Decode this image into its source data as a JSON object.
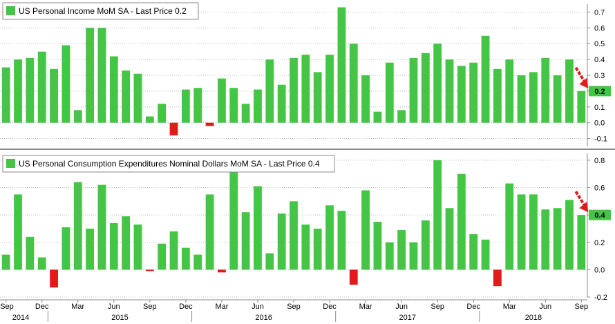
{
  "colors": {
    "positive": "#45c545",
    "negative": "#e31a1a",
    "arrow": "#e31a1a",
    "last_price_tag": "#45c545",
    "grid": "#bdbdbd",
    "divider": "#8a8a8a"
  },
  "x_axis": {
    "month_labels": [
      "Sep",
      "Dec",
      "Mar",
      "Jun",
      "Sep",
      "Dec",
      "Mar",
      "Jun",
      "Sep",
      "Dec",
      "Mar",
      "Jun",
      "Sep",
      "Dec",
      "Mar",
      "Jun",
      "Sep"
    ],
    "year_labels": [
      "2014",
      "2015",
      "2016",
      "2017",
      "2018"
    ]
  },
  "chart_data": [
    {
      "type": "bar",
      "title": "US Personal Income MoM SA - Last Price 0.2",
      "legend": "US Personal Income MoM SA - Last Price 0.2",
      "last_price": "0.2",
      "x_start": "2014-09",
      "x_end": "2018-09",
      "frequency": "monthly",
      "ylim": [
        -0.15,
        0.75
      ],
      "yticks": [
        "0.7",
        "0.6",
        "0.5",
        "0.4",
        "0.3",
        "0.2",
        "0.1",
        "0.0",
        "-0.1"
      ],
      "values": [
        0.35,
        0.4,
        0.41,
        0.45,
        0.34,
        0.49,
        0.08,
        0.6,
        0.6,
        0.42,
        0.33,
        0.31,
        0.04,
        0.12,
        -0.08,
        0.21,
        0.22,
        -0.02,
        0.28,
        0.22,
        0.12,
        0.21,
        0.4,
        0.24,
        0.41,
        0.43,
        0.32,
        0.43,
        0.73,
        0.5,
        0.3,
        0.07,
        0.38,
        0.08,
        0.41,
        0.44,
        0.5,
        0.4,
        0.36,
        0.38,
        0.55,
        0.34,
        0.4,
        0.3,
        0.32,
        0.41,
        0.3,
        0.4,
        0.2
      ]
    },
    {
      "type": "bar",
      "title": "US Personal Consumption Expenditures Nominal Dollars MoM SA - Last Price 0.4",
      "legend": "US Personal Consumption Expenditures Nominal Dollars MoM SA - Last Price 0.4",
      "last_price": "0.4",
      "x_start": "2014-09",
      "x_end": "2018-09",
      "frequency": "monthly",
      "ylim": [
        -0.2,
        0.85
      ],
      "yticks": [
        "0.8",
        "0.6",
        "0.4",
        "0.2",
        "0.0",
        "-0.2"
      ],
      "values": [
        0.11,
        0.55,
        0.24,
        0.09,
        -0.13,
        0.31,
        0.64,
        0.3,
        0.62,
        0.34,
        0.39,
        0.33,
        -0.01,
        0.19,
        0.28,
        0.16,
        0.11,
        0.55,
        -0.02,
        0.75,
        0.42,
        0.61,
        0.12,
        0.41,
        0.5,
        0.33,
        0.3,
        0.47,
        0.43,
        -0.11,
        0.58,
        0.35,
        0.2,
        0.29,
        0.2,
        0.36,
        0.8,
        0.45,
        0.7,
        0.26,
        0.22,
        -0.12,
        0.63,
        0.55,
        0.55,
        0.44,
        0.45,
        0.51,
        0.4
      ]
    }
  ]
}
